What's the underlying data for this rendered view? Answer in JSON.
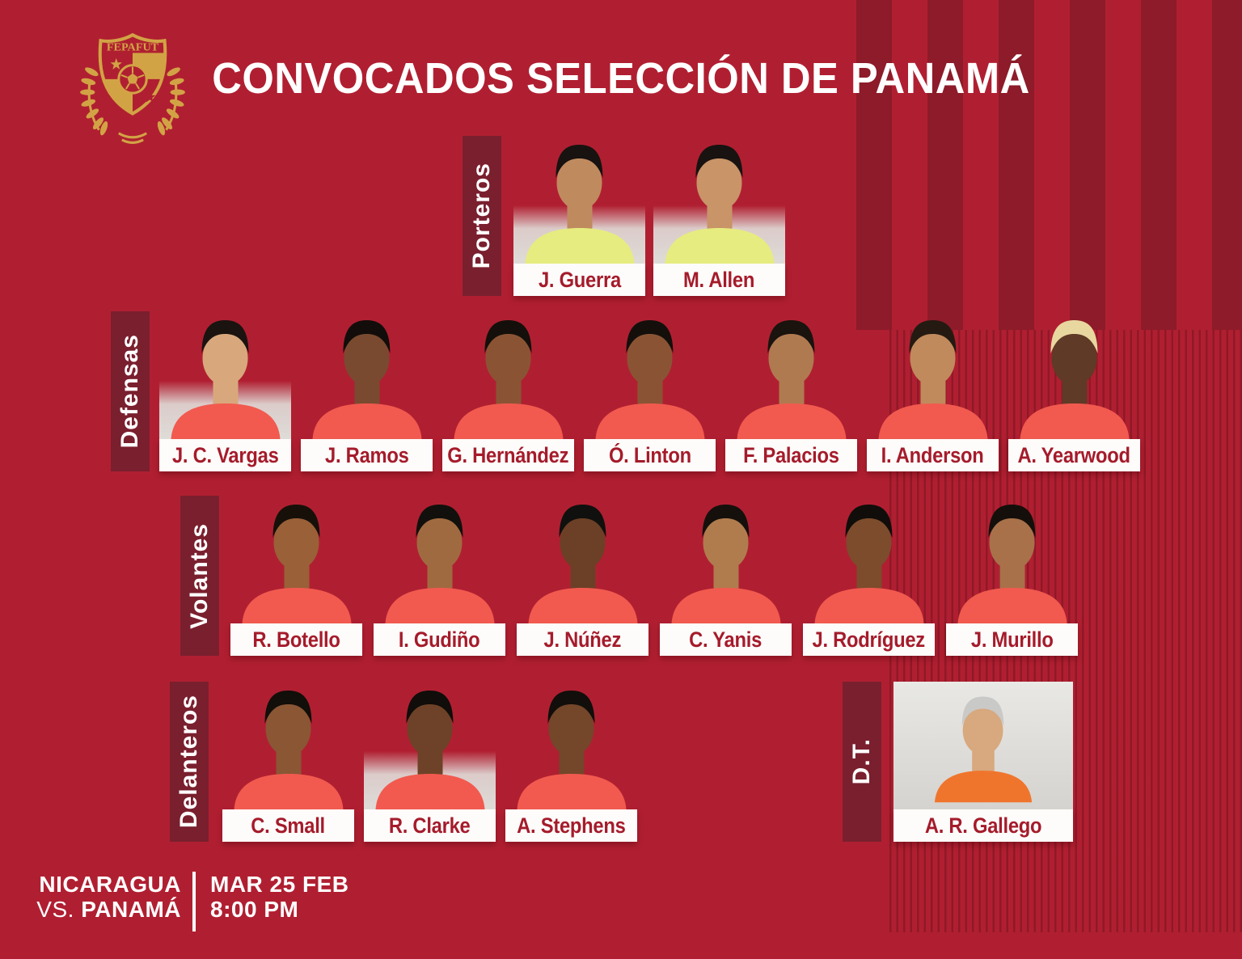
{
  "title": "CONVOCADOS SELECCIÓN DE PANAMÁ",
  "logo": {
    "text": "FEPAFUT"
  },
  "colors": {
    "background": "#b01f31",
    "stripe-dark": "#8d1b29",
    "label-bar": "#7a1f2e",
    "plate-bg": "#fdfcfa",
    "name-red": "#a51b2b",
    "title-white": "#ffffff",
    "gold": "#d2a345",
    "jersey-goalkeeper": "#e6ec7f",
    "jersey-field": "#f25a4f",
    "jersey-coach": "#f0752c"
  },
  "sections": [
    {
      "id": "porteros",
      "label": "Porteros",
      "jersey": "#e6ec7f",
      "players": [
        {
          "name": "J. Guerra",
          "skin": "#c08a5f",
          "hair": "#181210",
          "backdrop": "lower"
        },
        {
          "name": "M. Allen",
          "skin": "#c89468",
          "hair": "#181210",
          "backdrop": "lower"
        }
      ]
    },
    {
      "id": "defensas",
      "label": "Defensas",
      "jersey": "#f25a4f",
      "players": [
        {
          "name": "J. C. Vargas",
          "skin": "#d8a87c",
          "hair": "#1a1310",
          "backdrop": "lower"
        },
        {
          "name": "J. Ramos",
          "skin": "#7a4a30",
          "hair": "#120d0a",
          "backdrop": "none"
        },
        {
          "name": "G. Hernández",
          "skin": "#8a5434",
          "hair": "#140f0b",
          "backdrop": "none"
        },
        {
          "name": "Ó. Linton",
          "skin": "#8a5434",
          "hair": "#140f0b",
          "backdrop": "none"
        },
        {
          "name": "F. Palacios",
          "skin": "#b07a50",
          "hair": "#1a130e",
          "backdrop": "none"
        },
        {
          "name": "I. Anderson",
          "skin": "#c08a5c",
          "hair": "#241a12",
          "backdrop": "none"
        },
        {
          "name": "A. Yearwood",
          "skin": "#5f3a26",
          "hair": "#e8d79f",
          "backdrop": "none"
        }
      ]
    },
    {
      "id": "volantes",
      "label": "Volantes",
      "jersey": "#f25a4f",
      "players": [
        {
          "name": "R. Botello",
          "skin": "#9a6038",
          "hair": "#161009",
          "backdrop": "none"
        },
        {
          "name": "I. Gudiño",
          "skin": "#a06a40",
          "hair": "#12100c",
          "backdrop": "none"
        },
        {
          "name": "J. Núñez",
          "skin": "#6b4026",
          "hair": "#10100e",
          "backdrop": "none"
        },
        {
          "name": "C. Yanis",
          "skin": "#b07c4e",
          "hair": "#15100c",
          "backdrop": "none"
        },
        {
          "name": "J. Rodríguez",
          "skin": "#7c4c2c",
          "hair": "#110d0a",
          "backdrop": "none"
        },
        {
          "name": "J. Murillo",
          "skin": "#a8714a",
          "hair": "#140f0a",
          "backdrop": "none"
        }
      ]
    },
    {
      "id": "delanteros",
      "label": "Delanteros",
      "jersey": "#f25a4f",
      "players": [
        {
          "name": "C. Small",
          "skin": "#8a5634",
          "hair": "#120e0a",
          "backdrop": "none"
        },
        {
          "name": "R. Clarke",
          "skin": "#6e4228",
          "hair": "#100d0a",
          "backdrop": "lower"
        },
        {
          "name": "A. Stephens",
          "skin": "#74462a",
          "hair": "#110e0b",
          "backdrop": "none"
        }
      ]
    },
    {
      "id": "dt",
      "label": "D.T.",
      "jersey": "#f0752c",
      "players": [
        {
          "name": "A. R. Gallego",
          "skin": "#d8a87e",
          "hair": "#c9c9c7",
          "backdrop": "full"
        }
      ]
    }
  ],
  "footer": {
    "team1": "NICARAGUA",
    "vs": "VS.",
    "team2": "PANAMÁ",
    "date": "MAR 25 FEB",
    "time": "8:00 PM"
  }
}
